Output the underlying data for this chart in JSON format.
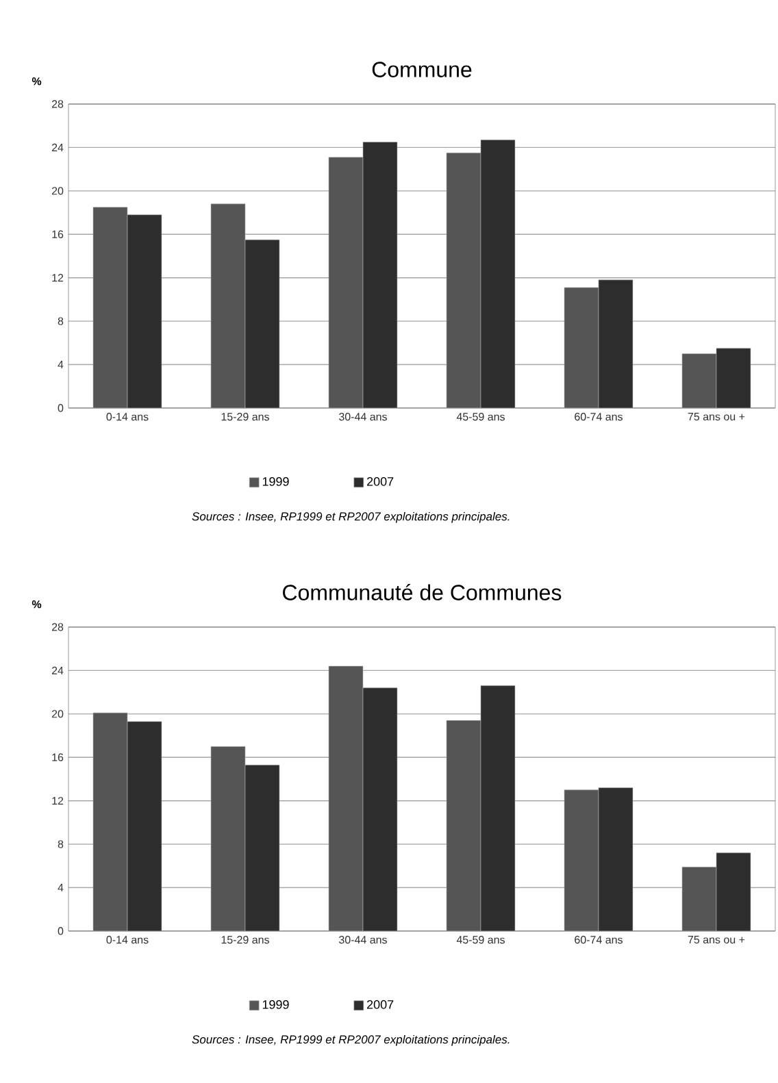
{
  "chart_data": [
    {
      "type": "bar",
      "title": "Commune",
      "ylabel": "%",
      "categories": [
        "0-14 ans",
        "15-29 ans",
        "30-44 ans",
        "45-59 ans",
        "60-74 ans",
        "75 ans ou +"
      ],
      "series": [
        {
          "name": "1999",
          "color": "#555555",
          "values": [
            18.5,
            18.8,
            23.1,
            23.5,
            11.1,
            5.0
          ]
        },
        {
          "name": "2007",
          "color": "#2d2d2d",
          "values": [
            17.8,
            15.5,
            24.5,
            24.7,
            11.8,
            5.5
          ]
        }
      ],
      "ylim": [
        0,
        28
      ],
      "yticks": [
        0,
        4,
        8,
        12,
        16,
        20,
        24,
        28
      ],
      "grid": "y",
      "legend": "bottom",
      "annotations": [
        "Sources : Insee, RP1999 et RP2007 exploitations principales."
      ]
    },
    {
      "type": "bar",
      "title": "Communauté de Communes",
      "ylabel": "%",
      "categories": [
        "0-14 ans",
        "15-29 ans",
        "30-44 ans",
        "45-59 ans",
        "60-74 ans",
        "75 ans ou +"
      ],
      "series": [
        {
          "name": "1999",
          "color": "#555555",
          "values": [
            20.1,
            17.0,
            24.4,
            19.4,
            13.0,
            5.9
          ]
        },
        {
          "name": "2007",
          "color": "#2d2d2d",
          "values": [
            19.3,
            15.3,
            22.4,
            22.6,
            13.2,
            7.2
          ]
        }
      ],
      "ylim": [
        0,
        28
      ],
      "yticks": [
        0,
        4,
        8,
        12,
        16,
        20,
        24,
        28
      ],
      "grid": "y",
      "legend": "bottom",
      "annotations": [
        "Sources : Insee, RP1999 et RP2007 exploitations principales."
      ]
    }
  ]
}
